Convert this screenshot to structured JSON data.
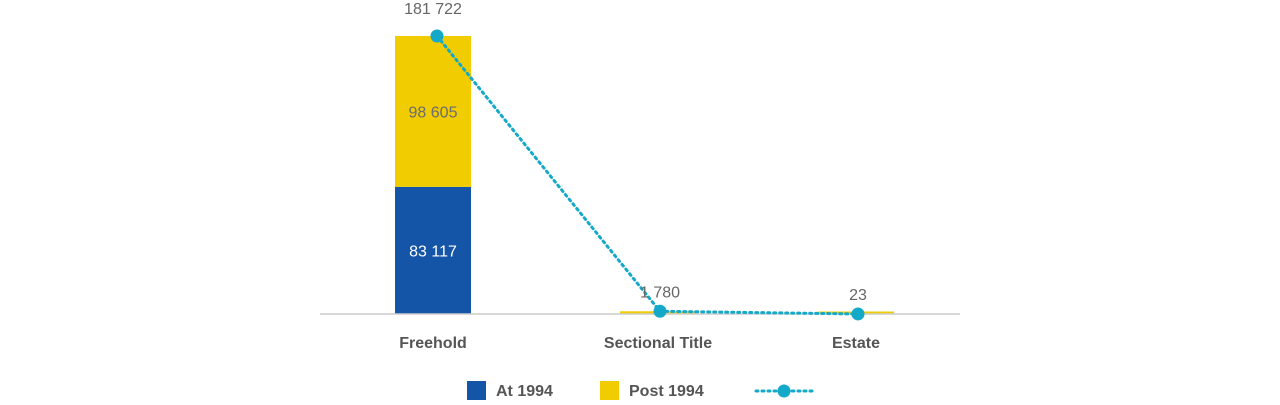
{
  "chart_data": {
    "type": "bar",
    "stacked": true,
    "categories": [
      "Freehold",
      "Sectional Title",
      "Estate"
    ],
    "series": [
      {
        "name": "At 1994",
        "values": [
          83117,
          0,
          0
        ],
        "color": "#1555a8",
        "value_labels": [
          "83 117",
          "",
          ""
        ]
      },
      {
        "name": "Post 1994",
        "values": [
          98605,
          1780,
          23
        ],
        "color": "#f0cc00",
        "value_labels": [
          "98 605",
          "",
          ""
        ]
      }
    ],
    "line_series": {
      "name": "",
      "values": [
        181722,
        1780,
        23
      ],
      "labels": [
        "181 722",
        "1 780",
        "23"
      ],
      "color": "#14a9c9",
      "style": "dotted"
    },
    "ylim": [
      0,
      181722
    ],
    "legend_position": "bottom",
    "grid": false
  }
}
